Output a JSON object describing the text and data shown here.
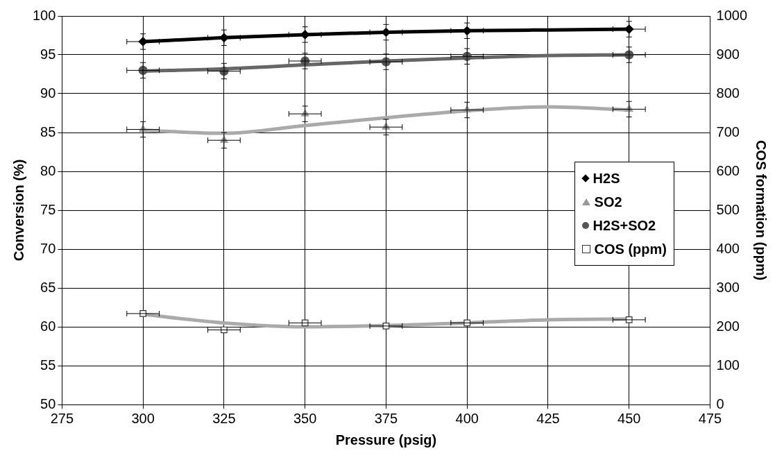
{
  "chart_data": {
    "type": "scatter",
    "xlabel": "Pressure (psig)",
    "ylabel": "Conversion (%)",
    "y2label": "COS formation (ppm)",
    "xlim": [
      275,
      475
    ],
    "xticks": [
      275,
      300,
      325,
      350,
      375,
      400,
      425,
      450,
      475
    ],
    "ylim": [
      50,
      100
    ],
    "yticks": [
      50,
      55,
      60,
      65,
      70,
      75,
      80,
      85,
      90,
      95,
      100
    ],
    "y2lim": [
      0,
      1000
    ],
    "y2ticks": [
      0,
      100,
      200,
      300,
      400,
      500,
      600,
      700,
      800,
      900,
      1000
    ],
    "grid": true,
    "legend": "right",
    "x": [
      300,
      325,
      350,
      375,
      400,
      450
    ],
    "series": [
      {
        "name": "H2S",
        "marker": "diamond",
        "color": "#000000",
        "values": [
          96.7,
          97.2,
          97.6,
          97.9,
          98.1,
          98.3
        ],
        "errors": [
          1,
          1,
          1,
          1,
          1,
          1
        ],
        "xerrors": [
          5,
          5,
          5,
          5,
          5,
          5
        ]
      },
      {
        "name": "SO2",
        "marker": "triangle",
        "color": "#999999",
        "values": [
          85.4,
          84.0,
          87.4,
          85.7,
          87.9,
          88.0
        ],
        "errors": [
          1,
          1,
          1,
          1,
          1,
          1
        ],
        "xerrors": [
          5,
          5,
          5,
          5,
          5,
          5
        ]
      },
      {
        "name": "H2S+SO2",
        "marker": "circle",
        "color": "#555555",
        "values": [
          93.0,
          92.9,
          94.2,
          94.1,
          94.8,
          95.0
        ],
        "errors": [
          1,
          1,
          1,
          1,
          1,
          1
        ],
        "xerrors": [
          5,
          5,
          5,
          5,
          5,
          5
        ]
      },
      {
        "name": "COS (ppm)",
        "marker": "square",
        "color": "#ffffff",
        "axis": "y2",
        "values": [
          234,
          192,
          210,
          202,
          210,
          218
        ],
        "xerrors": [
          5,
          5,
          5,
          5,
          5,
          5
        ]
      },
      {
        "type": "line",
        "marker": "none",
        "color": "#000000",
        "x": [
          300,
          325,
          350,
          375,
          400,
          425,
          450
        ],
        "values": [
          96.7,
          97.2,
          97.6,
          97.9,
          98.1,
          98.2,
          98.3
        ]
      },
      {
        "type": "line",
        "marker": "none",
        "color": "#aaaaaa",
        "x": [
          300,
          325,
          350,
          375,
          400,
          425,
          450
        ],
        "values": [
          85.3,
          84.9,
          85.9,
          86.9,
          87.8,
          88.3,
          87.9
        ]
      },
      {
        "type": "line",
        "marker": "none",
        "color": "#666666",
        "x": [
          300,
          325,
          350,
          375,
          400,
          425,
          450
        ],
        "values": [
          92.9,
          93.2,
          93.7,
          94.2,
          94.6,
          94.9,
          95.0
        ]
      },
      {
        "type": "line",
        "marker": "none",
        "color": "#aaaaaa",
        "axis": "y2",
        "x": [
          300,
          325,
          350,
          375,
          400,
          425,
          450
        ],
        "values": [
          232,
          210,
          200,
          203,
          210,
          218,
          220
        ]
      }
    ]
  }
}
